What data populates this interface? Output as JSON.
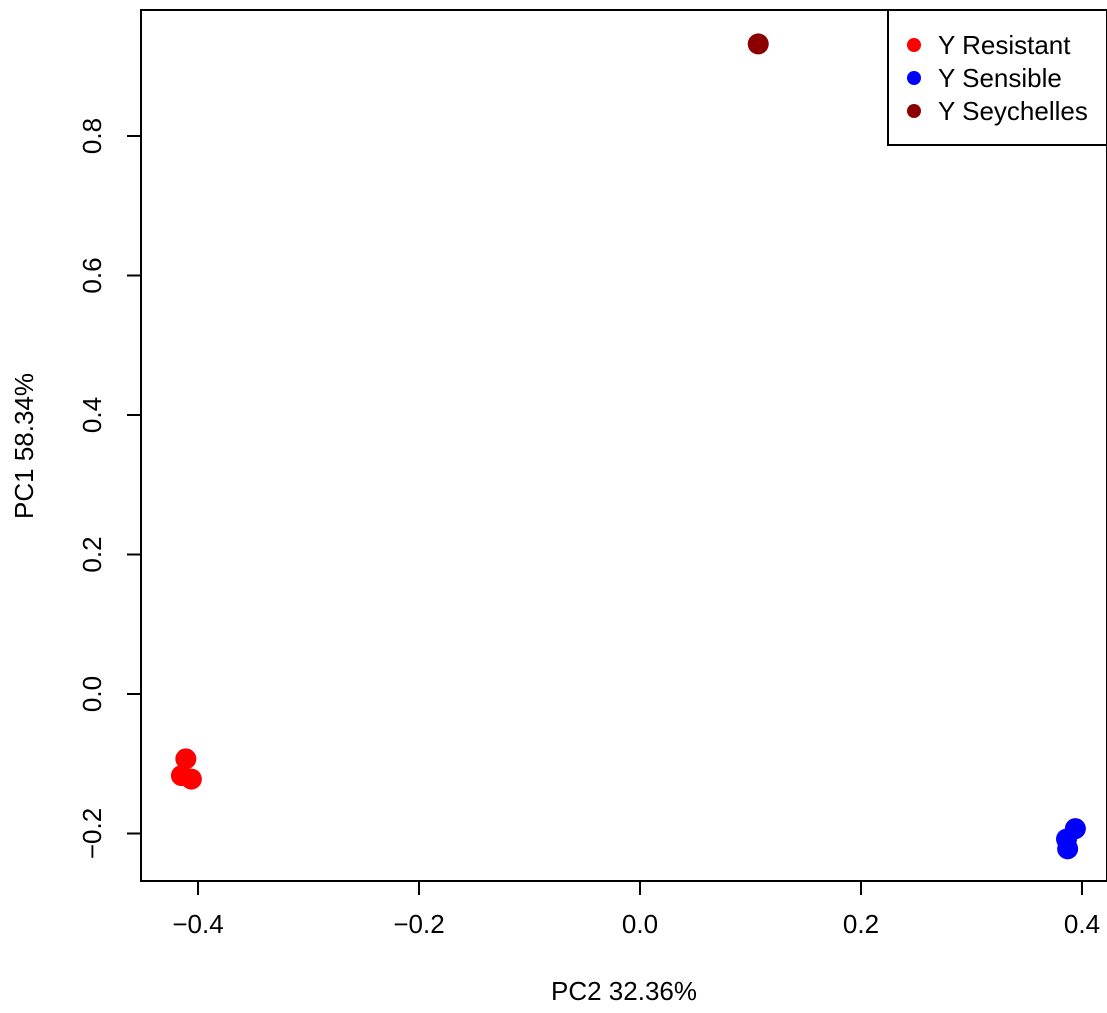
{
  "chart_data": {
    "type": "scatter",
    "title": "",
    "xlabel": "PC2 32.36%",
    "ylabel": "PC1 58.34%",
    "xlim": [
      -0.45,
      0.42
    ],
    "ylim": [
      -0.27,
      0.98
    ],
    "xticks": [
      -0.4,
      -0.2,
      0.0,
      0.2,
      0.4
    ],
    "xtick_labels": [
      "−0.4",
      "−0.2",
      "0.0",
      "0.2",
      "0.4"
    ],
    "yticks": [
      -0.2,
      0.0,
      0.2,
      0.4,
      0.6,
      0.8
    ],
    "ytick_labels": [
      "−0.2",
      "0.0",
      "0.2",
      "0.4",
      "0.6",
      "0.8"
    ],
    "grid": false,
    "legend_position": "top-right",
    "series": [
      {
        "name": "Y Resistant",
        "color": "#ff0000",
        "points": [
          [
            -0.415,
            -0.117
          ],
          [
            -0.411,
            -0.093
          ],
          [
            -0.406,
            -0.122
          ]
        ]
      },
      {
        "name": "Y Sensible",
        "color": "#0000ff",
        "points": [
          [
            0.394,
            -0.193
          ],
          [
            0.386,
            -0.208
          ],
          [
            0.387,
            -0.222
          ]
        ]
      },
      {
        "name": "Y Seychelles",
        "color": "#8b0000",
        "points": [
          [
            0.107,
            0.932
          ]
        ]
      }
    ]
  }
}
